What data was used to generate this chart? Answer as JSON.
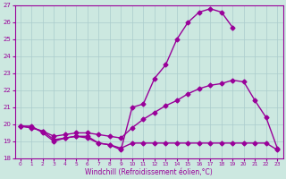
{
  "line1_x": [
    0,
    1,
    2,
    3,
    4,
    5,
    6,
    7,
    8,
    9,
    10,
    11,
    12,
    13,
    14,
    15,
    16,
    17,
    18,
    19
  ],
  "line1_y": [
    19.9,
    19.9,
    19.5,
    19.0,
    19.2,
    19.3,
    19.2,
    18.9,
    18.8,
    18.5,
    21.0,
    21.2,
    22.7,
    23.5,
    25.0,
    26.0,
    26.6,
    26.8,
    26.6,
    25.7
  ],
  "line2_x": [
    0,
    1,
    2,
    3,
    4,
    5,
    6,
    7,
    8,
    9,
    10,
    11,
    12,
    13,
    14,
    15,
    16,
    17,
    18,
    19,
    20,
    21,
    22,
    23
  ],
  "line2_y": [
    19.9,
    19.8,
    19.6,
    19.3,
    19.4,
    19.5,
    19.5,
    19.4,
    19.3,
    19.2,
    19.8,
    20.3,
    20.7,
    21.1,
    21.4,
    21.8,
    22.1,
    22.3,
    22.4,
    22.6,
    22.5,
    21.4,
    20.4,
    18.6
  ],
  "line3_x": [
    0,
    1,
    2,
    3,
    4,
    5,
    6,
    7,
    8,
    9,
    10,
    11,
    12,
    13,
    14,
    15,
    16,
    17,
    18,
    19,
    20,
    21,
    22,
    23
  ],
  "line3_y": [
    19.9,
    19.8,
    19.6,
    19.1,
    19.2,
    19.3,
    19.3,
    18.9,
    18.8,
    18.6,
    18.9,
    18.9,
    18.9,
    18.9,
    18.9,
    18.9,
    18.9,
    18.9,
    18.9,
    18.9,
    18.9,
    18.9,
    18.9,
    18.5
  ],
  "line_color": "#990099",
  "bg_color": "#cce8e0",
  "grid_color": "#aacccc",
  "xlabel": "Windchill (Refroidissement éolien,°C)",
  "ylim": [
    18,
    27
  ],
  "xlim": [
    -0.5,
    23.5
  ],
  "yticks": [
    18,
    19,
    20,
    21,
    22,
    23,
    24,
    25,
    26,
    27
  ],
  "xticks": [
    0,
    1,
    2,
    3,
    4,
    5,
    6,
    7,
    8,
    9,
    10,
    11,
    12,
    13,
    14,
    15,
    16,
    17,
    18,
    19,
    20,
    21,
    22,
    23
  ],
  "markersize": 2.5,
  "linewidth": 1.0
}
